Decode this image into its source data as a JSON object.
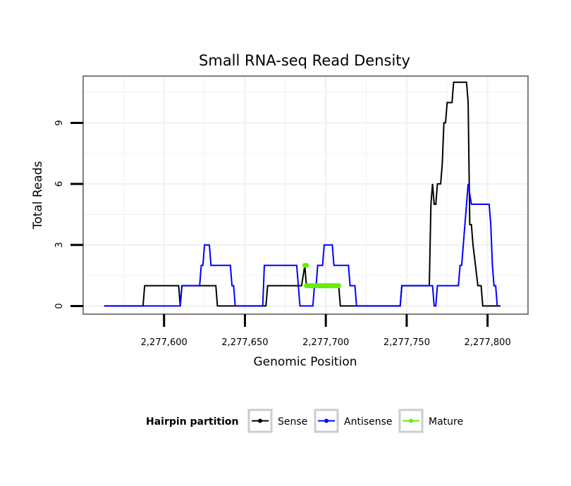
{
  "chart_data": {
    "type": "line",
    "title": "Small RNA-seq Read Density",
    "xlabel": "Genomic Position",
    "ylabel": "Total Reads",
    "xlim": [
      2277550,
      2277825
    ],
    "ylim": [
      -0.4,
      11.3
    ],
    "x_ticks": [
      2277600,
      2277650,
      2277700,
      2277750,
      2277800
    ],
    "x_tick_labels": [
      "2,277,600",
      "2,277,650",
      "2,277,700",
      "2,277,750",
      "2,277,800"
    ],
    "y_ticks": [
      0,
      3,
      6,
      9
    ],
    "y_tick_labels": [
      "0",
      "3",
      "6",
      "9"
    ],
    "grid": true,
    "legend": {
      "title": "Hairpin partition",
      "position": "bottom",
      "entries": [
        {
          "name": "Sense",
          "color": "#000000"
        },
        {
          "name": "Antisense",
          "color": "#0000ff"
        },
        {
          "name": "Mature",
          "color": "#66ee00"
        }
      ]
    },
    "series": [
      {
        "name": "Sense",
        "color": "#000000",
        "points": [
          [
            2277563,
            0
          ],
          [
            2277587,
            0
          ],
          [
            2277588,
            1
          ],
          [
            2277609,
            1
          ],
          [
            2277610,
            0
          ],
          [
            2277611,
            1
          ],
          [
            2277632,
            1
          ],
          [
            2277633,
            0
          ],
          [
            2277663,
            0
          ],
          [
            2277664,
            1
          ],
          [
            2277682,
            1
          ],
          [
            2277685,
            1
          ],
          [
            2277687,
            2
          ],
          [
            2277688,
            1
          ],
          [
            2277708,
            1
          ],
          [
            2277709,
            0
          ],
          [
            2277746,
            0
          ],
          [
            2277747,
            1
          ],
          [
            2277764,
            1
          ],
          [
            2277765,
            5
          ],
          [
            2277766,
            6
          ],
          [
            2277767,
            5
          ],
          [
            2277768,
            5
          ],
          [
            2277769,
            6
          ],
          [
            2277771,
            6
          ],
          [
            2277772,
            7
          ],
          [
            2277773,
            9
          ],
          [
            2277774,
            9
          ],
          [
            2277775,
            10
          ],
          [
            2277778,
            10
          ],
          [
            2277779,
            11
          ],
          [
            2277787,
            11
          ],
          [
            2277788,
            10
          ],
          [
            2277789,
            4
          ],
          [
            2277790,
            4
          ],
          [
            2277791,
            3
          ],
          [
            2277794,
            1
          ],
          [
            2277796,
            1
          ],
          [
            2277797,
            0
          ],
          [
            2277808,
            0
          ]
        ]
      },
      {
        "name": "Antisense",
        "color": "#0000ff",
        "points": [
          [
            2277563,
            0
          ],
          [
            2277610,
            0
          ],
          [
            2277611,
            1
          ],
          [
            2277622,
            1
          ],
          [
            2277623,
            2
          ],
          [
            2277624,
            2
          ],
          [
            2277625,
            3
          ],
          [
            2277628,
            3
          ],
          [
            2277629,
            2
          ],
          [
            2277641,
            2
          ],
          [
            2277642,
            1
          ],
          [
            2277643,
            1
          ],
          [
            2277644,
            0
          ],
          [
            2277661,
            0
          ],
          [
            2277662,
            2
          ],
          [
            2277682,
            2
          ],
          [
            2277683,
            1
          ],
          [
            2277684,
            0
          ],
          [
            2277692,
            0
          ],
          [
            2277693,
            1
          ],
          [
            2277694,
            1
          ],
          [
            2277695,
            2
          ],
          [
            2277698,
            2
          ],
          [
            2277699,
            3
          ],
          [
            2277704,
            3
          ],
          [
            2277705,
            2
          ],
          [
            2277714,
            2
          ],
          [
            2277715,
            1
          ],
          [
            2277718,
            1
          ],
          [
            2277719,
            0
          ],
          [
            2277727,
            0
          ],
          [
            2277746,
            0
          ],
          [
            2277747,
            1
          ],
          [
            2277765,
            1
          ],
          [
            2277766,
            1
          ],
          [
            2277767,
            0
          ],
          [
            2277768,
            0
          ],
          [
            2277769,
            1
          ],
          [
            2277782,
            1
          ],
          [
            2277783,
            2
          ],
          [
            2277784,
            2
          ],
          [
            2277785,
            3
          ],
          [
            2277786,
            4
          ],
          [
            2277787,
            5
          ],
          [
            2277788,
            6
          ],
          [
            2277790,
            5
          ],
          [
            2277801,
            5
          ],
          [
            2277802,
            4
          ],
          [
            2277803,
            2
          ],
          [
            2277804,
            1
          ],
          [
            2277805,
            1
          ],
          [
            2277806,
            0
          ]
        ]
      },
      {
        "name": "Mature",
        "color": "#66ee00",
        "points": [
          [
            2277687,
            2
          ],
          [
            2277688,
            2
          ]
        ],
        "points2": [
          [
            2277688,
            1
          ],
          [
            2277708,
            1
          ]
        ]
      }
    ]
  }
}
